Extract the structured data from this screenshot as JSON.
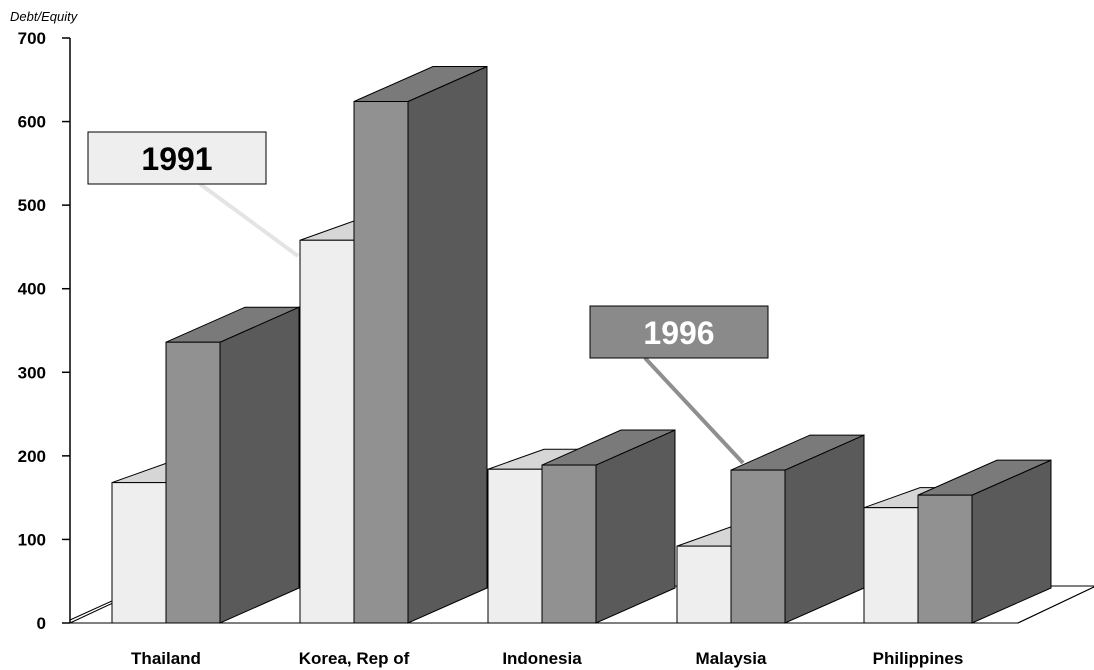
{
  "chart_data": {
    "type": "bar",
    "ylabel": "Debt/Equity",
    "xlabel": "",
    "ylim": [
      0,
      700
    ],
    "yticks": [
      "0",
      "100",
      "200",
      "300",
      "400",
      "500",
      "600",
      "700"
    ],
    "categories": [
      "Thailand",
      "Korea, Rep of",
      "Indonesia",
      "Malaysia",
      "Philippines"
    ],
    "series": [
      {
        "name": "1991",
        "values": [
          168,
          458,
          184,
          92,
          138
        ]
      },
      {
        "name": "1996",
        "values": [
          336,
          624,
          189,
          183,
          153
        ]
      }
    ],
    "colors": {
      "series_1991_front": "#eeeeee",
      "series_1991_top": "#d6d6d6",
      "series_1996_front": "#919191",
      "series_1996_top": "#7a7a7a",
      "series_1996_side": "#5a5a5a"
    },
    "annotations": [
      {
        "text": "1991",
        "series": "1991",
        "box_fill": "#eeeeee",
        "text_color": "#000000"
      },
      {
        "text": "1996",
        "series": "1996",
        "box_fill": "#8a8a8a",
        "text_color": "#ffffff"
      }
    ],
    "grid": false,
    "legend": "none"
  }
}
